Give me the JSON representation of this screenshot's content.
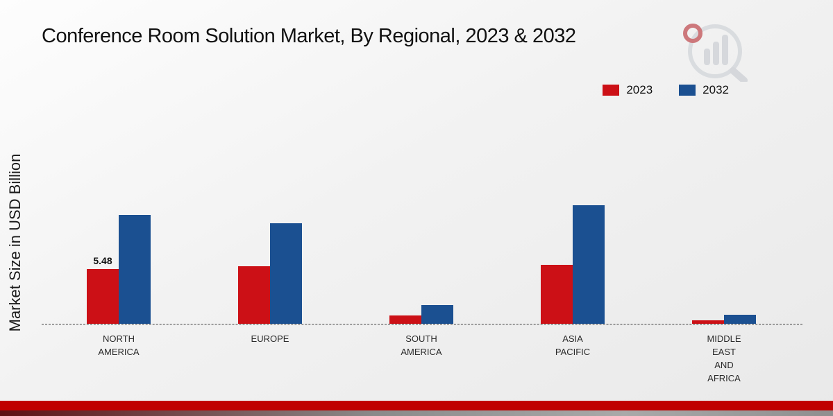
{
  "title": "Conference Room Solution Market, By Regional, 2023 & 2032",
  "y_axis_label": "Market Size in USD Billion",
  "colors": {
    "series_2023": "#cc1016",
    "series_2032": "#1b5091",
    "footer_bar": "#c00000",
    "axis_dash": "#3c3c3c"
  },
  "chart_data": {
    "type": "bar",
    "title": "Conference Room Solution Market, By Regional, 2023 & 2032",
    "xlabel": "",
    "ylabel": "Market Size in USD Billion",
    "ylim": [
      0,
      13
    ],
    "grid": false,
    "legend_position": "top-right",
    "categories": [
      "NORTH AMERICA",
      "EUROPE",
      "SOUTH AMERICA",
      "ASIA PACIFIC",
      "MIDDLE EAST AND AFRICA"
    ],
    "series": [
      {
        "name": "2023",
        "color": "#cc1016",
        "values": [
          5.48,
          5.75,
          0.85,
          5.9,
          0.35
        ],
        "value_labels": [
          "5.48",
          "",
          "",
          "",
          ""
        ]
      },
      {
        "name": "2032",
        "color": "#1b5091",
        "values": [
          10.9,
          10.1,
          1.9,
          11.9,
          0.9
        ],
        "value_labels": [
          "",
          "",
          "",
          "",
          ""
        ]
      }
    ]
  }
}
